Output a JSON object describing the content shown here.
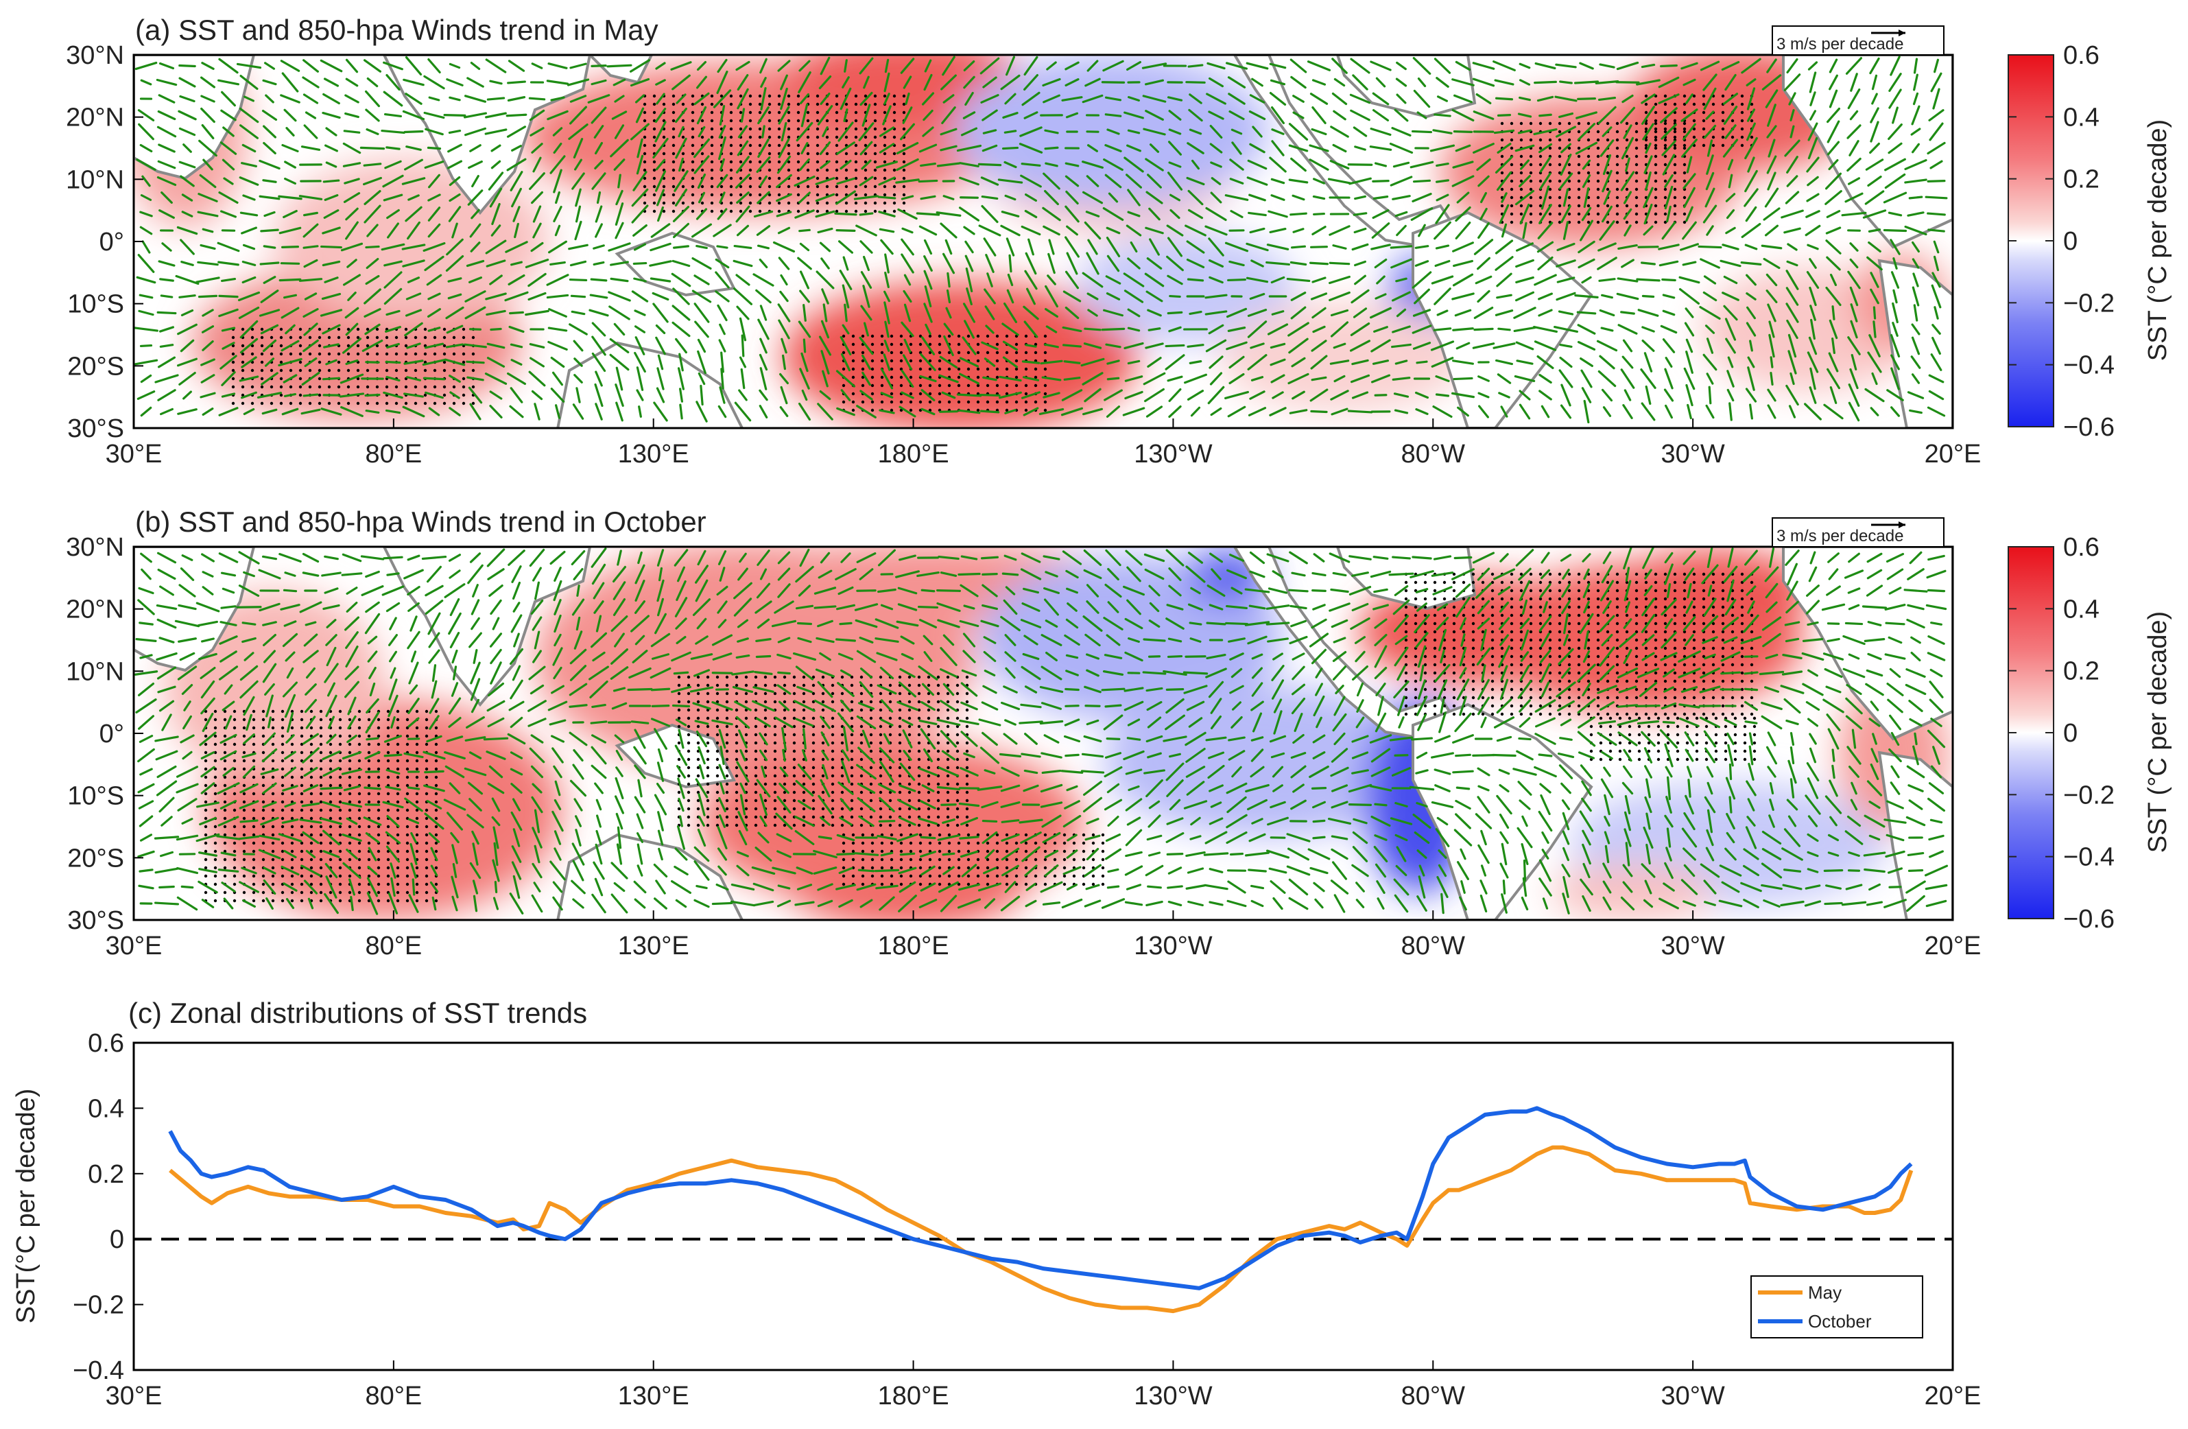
{
  "colors": {
    "sst_warm": "#e8101a",
    "sst_cool": "#1a22ee",
    "wind_vectors": "#1e8c14",
    "land": "#ffffff",
    "coast": "#8a8a8a",
    "stipple": "#000000",
    "may_line": "#f5961e",
    "october_line": "#1a64e6",
    "zero_line": "#000000"
  },
  "panels": [
    {
      "title": "(a)  SST and 850-hpa Winds trend in May",
      "wind_scale_label": "3 m/s per decade",
      "y_ticks": [
        "30°N",
        "20°N",
        "10°N",
        "0°",
        "10°S",
        "20°S",
        "30°S"
      ],
      "x_ticks": [
        "30°E",
        "80°E",
        "130°E",
        "180°E",
        "130°W",
        "80°W",
        "30°W",
        "20°E"
      ],
      "colorbar": {
        "label": "SST (°C per decade)",
        "ticks": [
          "0.6",
          "0.4",
          "0.2",
          "0",
          "−0.2",
          "−0.4",
          "−0.6"
        ]
      }
    },
    {
      "title": "(b) SST and 850-hpa Winds trend in October",
      "wind_scale_label": "3 m/s per decade",
      "y_ticks": [
        "30°N",
        "20°N",
        "10°N",
        "0°",
        "10°S",
        "20°S",
        "30°S"
      ],
      "x_ticks": [
        "30°E",
        "80°E",
        "130°E",
        "180°E",
        "130°W",
        "80°W",
        "30°W",
        "20°E"
      ],
      "colorbar": {
        "label": "SST (°C per decade)",
        "ticks": [
          "0.6",
          "0.4",
          "0.2",
          "0",
          "−0.2",
          "−0.4",
          "−0.6"
        ]
      }
    }
  ],
  "chart_data": {
    "type": "line",
    "title": "(c) Zonal distributions of SST trends",
    "xlabel": "",
    "ylabel": "SST(°C per decade)",
    "x_ticks": [
      "30°E",
      "80°E",
      "130°E",
      "180°E",
      "130°W",
      "80°W",
      "30°W",
      "20°E"
    ],
    "y_ticks": [
      "0.6",
      "0.4",
      "0.2",
      "0",
      "−0.2",
      "−0.4"
    ],
    "xlim": [
      30,
      380
    ],
    "ylim": [
      -0.4,
      0.6
    ],
    "x_unit": "degrees east (0–360 continuous; 230 = 130°W, 330 = 30°W)",
    "zero_line": {
      "value": 0,
      "style": "dashed"
    },
    "legend": {
      "location": "bottom-right",
      "entries": [
        "May",
        "October"
      ]
    },
    "series": [
      {
        "name": "May",
        "color": "#f5961e",
        "x": [
          37,
          40,
          43,
          45,
          48,
          52,
          56,
          60,
          65,
          70,
          75,
          80,
          85,
          90,
          95,
          100,
          103,
          105,
          108,
          110,
          113,
          116,
          120,
          125,
          130,
          135,
          140,
          145,
          150,
          155,
          160,
          165,
          170,
          175,
          180,
          185,
          190,
          195,
          200,
          205,
          210,
          215,
          220,
          225,
          230,
          235,
          240,
          245,
          250,
          255,
          260,
          263,
          266,
          270,
          273,
          275,
          278,
          280,
          283,
          285,
          290,
          295,
          300,
          303,
          305,
          310,
          315,
          320,
          325,
          330,
          335,
          338,
          340,
          341,
          345,
          350,
          355,
          360,
          363,
          365,
          368,
          370,
          372
        ],
        "values": [
          0.21,
          0.17,
          0.13,
          0.11,
          0.14,
          0.16,
          0.14,
          0.13,
          0.13,
          0.12,
          0.12,
          0.1,
          0.1,
          0.08,
          0.07,
          0.05,
          0.06,
          0.03,
          0.04,
          0.11,
          0.09,
          0.05,
          0.1,
          0.15,
          0.17,
          0.2,
          0.22,
          0.24,
          0.22,
          0.21,
          0.2,
          0.18,
          0.14,
          0.09,
          0.05,
          0.01,
          -0.04,
          -0.07,
          -0.11,
          -0.15,
          -0.18,
          -0.2,
          -0.21,
          -0.21,
          -0.22,
          -0.2,
          -0.14,
          -0.06,
          0.0,
          0.02,
          0.04,
          0.03,
          0.05,
          0.02,
          0.0,
          -0.02,
          0.06,
          0.11,
          0.15,
          0.15,
          0.18,
          0.21,
          0.26,
          0.28,
          0.28,
          0.26,
          0.21,
          0.2,
          0.18,
          0.18,
          0.18,
          0.18,
          0.17,
          0.11,
          0.1,
          0.09,
          0.1,
          0.1,
          0.08,
          0.08,
          0.09,
          0.12,
          0.21
        ]
      },
      {
        "name": "October",
        "color": "#1a64e6",
        "x": [
          37,
          39,
          41,
          43,
          45,
          48,
          52,
          55,
          60,
          65,
          70,
          75,
          80,
          85,
          90,
          95,
          100,
          103,
          105,
          108,
          110,
          113,
          116,
          120,
          125,
          130,
          135,
          140,
          145,
          150,
          155,
          160,
          165,
          170,
          175,
          180,
          185,
          190,
          195,
          200,
          205,
          210,
          215,
          220,
          225,
          230,
          235,
          240,
          245,
          250,
          255,
          260,
          263,
          266,
          270,
          273,
          275,
          278,
          280,
          283,
          285,
          290,
          295,
          298,
          300,
          303,
          305,
          310,
          315,
          320,
          325,
          330,
          335,
          338,
          340,
          341,
          345,
          350,
          355,
          360,
          365,
          368,
          370,
          372
        ],
        "values": [
          0.33,
          0.27,
          0.24,
          0.2,
          0.19,
          0.2,
          0.22,
          0.21,
          0.16,
          0.14,
          0.12,
          0.13,
          0.16,
          0.13,
          0.12,
          0.09,
          0.04,
          0.05,
          0.04,
          0.02,
          0.01,
          0.0,
          0.03,
          0.11,
          0.14,
          0.16,
          0.17,
          0.17,
          0.18,
          0.17,
          0.15,
          0.12,
          0.09,
          0.06,
          0.03,
          0.0,
          -0.02,
          -0.04,
          -0.06,
          -0.07,
          -0.09,
          -0.1,
          -0.11,
          -0.12,
          -0.13,
          -0.14,
          -0.15,
          -0.12,
          -0.07,
          -0.02,
          0.01,
          0.02,
          0.01,
          -0.01,
          0.01,
          0.02,
          0.0,
          0.13,
          0.23,
          0.31,
          0.33,
          0.38,
          0.39,
          0.39,
          0.4,
          0.38,
          0.37,
          0.33,
          0.28,
          0.25,
          0.23,
          0.22,
          0.23,
          0.23,
          0.24,
          0.19,
          0.14,
          0.1,
          0.09,
          0.11,
          0.13,
          0.16,
          0.2,
          0.23
        ]
      }
    ]
  }
}
